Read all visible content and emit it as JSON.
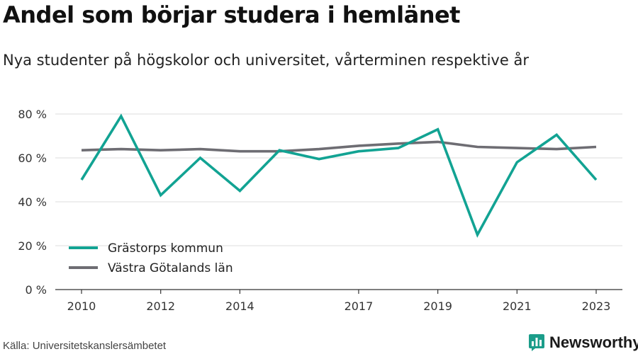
{
  "header": {
    "title": "Andel som börjar studera i hemlänet",
    "subtitle": "Nya studenter på högskolor och universitet, vårterminen respektive år"
  },
  "footer": {
    "source": "Källa: Universitetskanslersämbetet",
    "brand": "Newsworthy"
  },
  "colors": {
    "series_1": "#12a393",
    "series_2": "#6e6d73",
    "grid": "#dddddd",
    "axis": "#333333",
    "brand": "#1b9d8a"
  },
  "icons": {
    "brand_logo": "bar-chart-logo-icon"
  },
  "chart_data": {
    "type": "line",
    "title": "",
    "xlabel": "",
    "ylabel": "",
    "x": [
      2010,
      2011,
      2012,
      2013,
      2014,
      2015,
      2016,
      2017,
      2018,
      2019,
      2020,
      2021,
      2022,
      2023
    ],
    "x_ticks": [
      2010,
      2012,
      2014,
      2017,
      2019,
      2021,
      2023
    ],
    "y_ticks": [
      {
        "value": 0,
        "label": "0 %"
      },
      {
        "value": 20,
        "label": "20 %"
      },
      {
        "value": 40,
        "label": "40 %"
      },
      {
        "value": 60,
        "label": "60 %"
      },
      {
        "value": 80,
        "label": "80 %"
      }
    ],
    "ylim": [
      0,
      85
    ],
    "grid": true,
    "legend_position": "bottom-left",
    "series": [
      {
        "name": "Grästorps kommun",
        "color": "#12a393",
        "values": [
          50,
          79,
          43,
          60,
          45,
          63.5,
          59.5,
          63,
          64.5,
          73,
          25,
          58,
          70.5,
          50
        ]
      },
      {
        "name": "Västra Götalands län",
        "color": "#6e6d73",
        "values": [
          63.5,
          64,
          63.5,
          64,
          63,
          63,
          64,
          65.5,
          66.5,
          67.3,
          65,
          64.5,
          64,
          65
        ]
      }
    ]
  }
}
